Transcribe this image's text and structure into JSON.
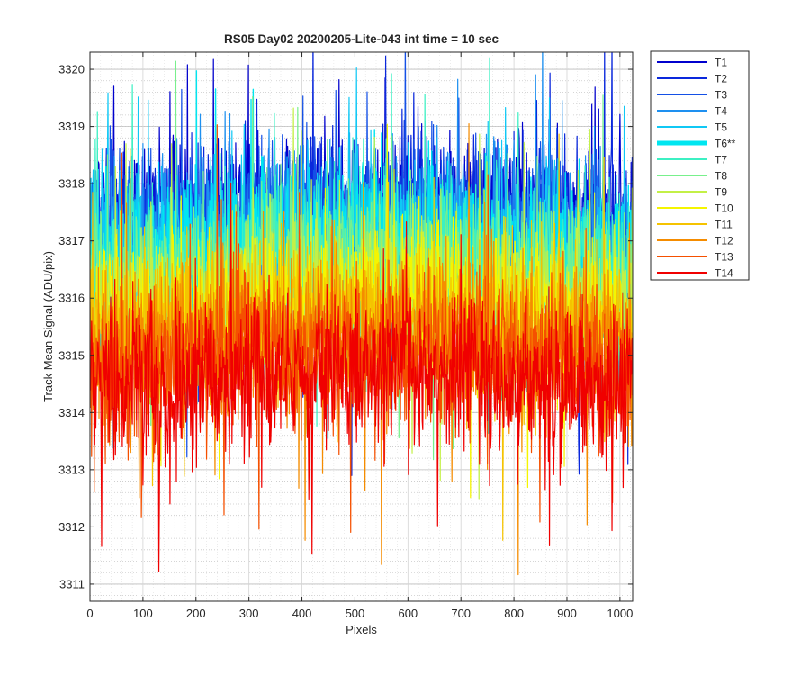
{
  "chart_data": {
    "type": "line",
    "title": "RS05 Day02 20200205-Lite-043 int time = 10 sec",
    "xlabel": "Pixels",
    "ylabel": "Track Mean Signal (ADU/pix)",
    "xlim": [
      0,
      1024
    ],
    "ylim": [
      3310.7,
      3320.3
    ],
    "xticks": [
      0,
      100,
      200,
      300,
      400,
      500,
      600,
      700,
      800,
      900,
      1000
    ],
    "yticks": [
      3311,
      3312,
      3313,
      3314,
      3315,
      3316,
      3317,
      3318,
      3319,
      3320
    ],
    "x_tick_labels": [
      "0",
      "100",
      "200",
      "300",
      "400",
      "500",
      "600",
      "700",
      "800",
      "900",
      "1000"
    ],
    "y_tick_labels": [
      "3311",
      "3312",
      "3313",
      "3314",
      "3315",
      "3316",
      "3317",
      "3318",
      "3319",
      "3320"
    ],
    "grid": true,
    "minor_grid": true,
    "legend_position": "outside-right",
    "n_points": 1024,
    "noise_amplitude": 1.1,
    "highlighted_series": "T6**",
    "series": [
      {
        "name": "T1",
        "color": "#0000cd",
        "mean": 3317.3
      },
      {
        "name": "T2",
        "color": "#0a28dc",
        "mean": 3317.15
      },
      {
        "name": "T3",
        "color": "#1450e6",
        "mean": 3317.0
      },
      {
        "name": "T4",
        "color": "#1e90f0",
        "mean": 3316.85
      },
      {
        "name": "T5",
        "color": "#10c8f5",
        "mean": 3316.75
      },
      {
        "name": "T6**",
        "color": "#00e6f0",
        "mean": 3316.6
      },
      {
        "name": "T7",
        "color": "#3cf0c3",
        "mean": 3316.35
      },
      {
        "name": "T8",
        "color": "#78f08c",
        "mean": 3316.1
      },
      {
        "name": "T9",
        "color": "#c3f046",
        "mean": 3315.85
      },
      {
        "name": "T10",
        "color": "#f5f500",
        "mean": 3315.6
      },
      {
        "name": "T11",
        "color": "#f5c300",
        "mean": 3315.3
      },
      {
        "name": "T12",
        "color": "#f58c00",
        "mean": 3315.0
      },
      {
        "name": "T13",
        "color": "#f55000",
        "mean": 3314.7
      },
      {
        "name": "T14",
        "color": "#f00000",
        "mean": 3314.4
      }
    ]
  }
}
